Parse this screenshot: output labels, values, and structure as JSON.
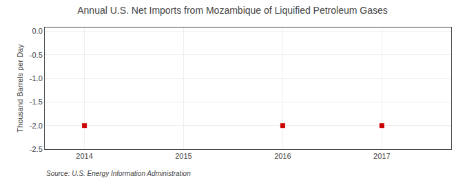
{
  "chart_data": {
    "type": "scatter",
    "title": "Annual U.S. Net Imports from Mozambique of Liquified Petroleum Gases",
    "ylabel": "Thousand Barrels per Day",
    "source": "Source: U.S. Energy Information Administration",
    "x": [
      2014,
      2016,
      2017
    ],
    "values": [
      -2.0,
      -2.0,
      -2.0
    ],
    "color": "#cc0000",
    "marker": "square",
    "xlim": [
      2013.6,
      2017.7
    ],
    "ylim": [
      -2.5,
      0.08
    ],
    "xticks": [
      2014,
      2015,
      2016,
      2017
    ],
    "yticks": [
      {
        "value": 0.0,
        "label": "0.0"
      },
      -0.5,
      {
        "value": -1.0,
        "label": "-1.0"
      },
      -1.5,
      {
        "value": -2.0,
        "label": "-2.0"
      },
      -2.5
    ],
    "grid": true
  }
}
